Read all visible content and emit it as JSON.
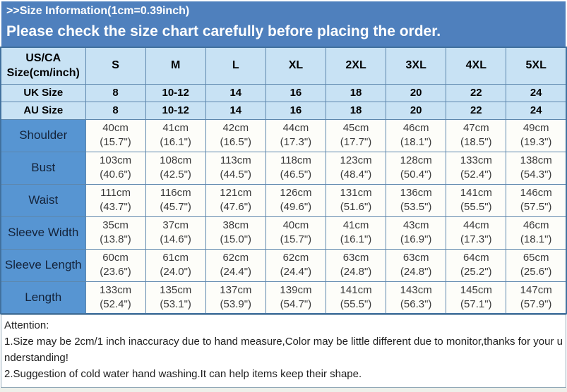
{
  "banner": {
    "line1": ">>Size Information(1cm=0.39inch)",
    "line2": "Please check the size chart carefully before placing the order."
  },
  "colors": {
    "banner_bg": "#4f80bd",
    "header_row_bg": "#c8e2f4",
    "measure_label_bg": "#5795d2",
    "value_cell_bg": "#fdfdf9",
    "table_border": "#5d87ad",
    "banner_text": "#ffffff"
  },
  "table": {
    "header_label_line1": "US/CA",
    "header_label_line2": "Size(cm/inch)",
    "sizes": [
      "S",
      "M",
      "L",
      "XL",
      "2XL",
      "3XL",
      "4XL",
      "5XL"
    ],
    "size_rows": [
      {
        "label": "UK Size",
        "values": [
          "8",
          "10-12",
          "14",
          "16",
          "18",
          "20",
          "22",
          "24"
        ]
      },
      {
        "label": "AU Size",
        "values": [
          "8",
          "10-12",
          "14",
          "16",
          "18",
          "20",
          "22",
          "24"
        ]
      }
    ],
    "measure_rows": [
      {
        "label": "Shoulder",
        "cm": [
          "40cm",
          "41cm",
          "42cm",
          "44cm",
          "45cm",
          "46cm",
          "47cm",
          "49cm"
        ],
        "in": [
          "(15.7\")",
          "(16.1\")",
          "(16.5\")",
          "(17.3\")",
          "(17.7\")",
          "(18.1\")",
          "(18.5\")",
          "(19.3\")"
        ]
      },
      {
        "label": "Bust",
        "cm": [
          "103cm",
          "108cm",
          "113cm",
          "118cm",
          "123cm",
          "128cm",
          "133cm",
          "138cm"
        ],
        "in": [
          "(40.6\")",
          "(42.5\")",
          "(44.5\")",
          "(46.5\")",
          "(48.4\")",
          "(50.4\")",
          "(52.4\")",
          "(54.3\")"
        ]
      },
      {
        "label": "Waist",
        "cm": [
          "111cm",
          "116cm",
          "121cm",
          "126cm",
          "131cm",
          "136cm",
          "141cm",
          "146cm"
        ],
        "in": [
          "(43.7\")",
          "(45.7\")",
          "(47.6\")",
          "(49.6\")",
          "(51.6\")",
          "(53.5\")",
          "(55.5\")",
          "(57.5\")"
        ]
      },
      {
        "label": "Sleeve Width",
        "cm": [
          "35cm",
          "37cm",
          "38cm",
          "40cm",
          "41cm",
          "43cm",
          "44cm",
          "46cm"
        ],
        "in": [
          "(13.8\")",
          "(14.6\")",
          "(15.0\")",
          "(15.7\")",
          "(16.1\")",
          "(16.9\")",
          "(17.3\")",
          "(18.1\")"
        ]
      },
      {
        "label": "Sleeve Length",
        "cm": [
          "60cm",
          "61cm",
          "62cm",
          "62cm",
          "63cm",
          "63cm",
          "64cm",
          "65cm"
        ],
        "in": [
          "(23.6\")",
          "(24.0\")",
          "(24.4\")",
          "(24.4\")",
          "(24.8\")",
          "(24.8\")",
          "(25.2\")",
          "(25.6\")"
        ]
      },
      {
        "label": "Length",
        "cm": [
          "133cm",
          "135cm",
          "137cm",
          "139cm",
          "141cm",
          "143cm",
          "145cm",
          "147cm"
        ],
        "in": [
          "(52.4\")",
          "(53.1\")",
          "(53.9\")",
          "(54.7\")",
          "(55.5\")",
          "(56.3\")",
          "(57.1\")",
          "(57.9\")"
        ]
      }
    ]
  },
  "notes": {
    "title": "Attention:",
    "items": [
      "1.Size may be 2cm/1 inch inaccuracy due to hand measure,Color may be little different due to monitor,thanks for your understanding!",
      "2.Suggestion of cold water hand washing.It can help items keep their shape."
    ]
  }
}
